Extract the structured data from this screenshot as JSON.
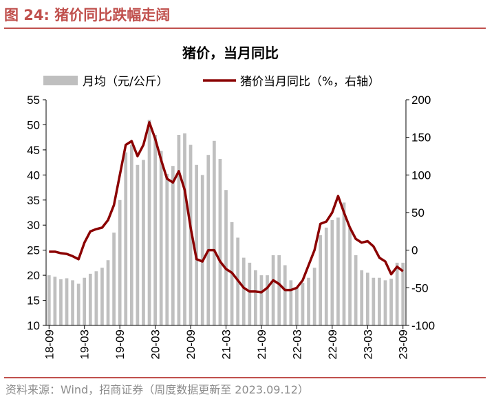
{
  "figure": {
    "title": "图 24:  猪价同比跌幅走阔",
    "source": "资料来源：Wind，招商证券（周度数据更新至 2023.09.12）"
  },
  "chart_data": {
    "type": "bar+line",
    "title": "猪价，当月同比",
    "legend_position": "top",
    "categories": [
      "18-09",
      "18-10",
      "18-11",
      "18-12",
      "19-01",
      "19-02",
      "19-03",
      "19-04",
      "19-05",
      "19-06",
      "19-07",
      "19-08",
      "19-09",
      "19-10",
      "19-11",
      "19-12",
      "20-01",
      "20-02",
      "20-03",
      "20-04",
      "20-05",
      "20-06",
      "20-07",
      "20-08",
      "20-09",
      "20-10",
      "20-11",
      "20-12",
      "21-01",
      "21-02",
      "21-03",
      "21-04",
      "21-05",
      "21-06",
      "21-07",
      "21-08",
      "21-09",
      "21-10",
      "21-11",
      "21-12",
      "22-01",
      "22-02",
      "22-03",
      "22-04",
      "22-05",
      "22-06",
      "22-07",
      "22-08",
      "22-09",
      "22-10",
      "22-11",
      "22-12",
      "23-01",
      "23-02",
      "23-03",
      "23-04",
      "23-05",
      "23-06",
      "23-07",
      "23-08",
      "23-09"
    ],
    "x_tick_labels": [
      "18-09",
      "19-03",
      "19-09",
      "20-03",
      "20-09",
      "21-03",
      "21-09",
      "22-03",
      "22-09",
      "23-03",
      "23-09"
    ],
    "y_left": {
      "min": 10,
      "max": 55,
      "ticks": [
        10,
        15,
        20,
        25,
        30,
        35,
        40,
        45,
        50,
        55
      ]
    },
    "y_right": {
      "min": -100,
      "max": 200,
      "ticks": [
        -100,
        -50,
        0,
        50,
        100,
        150,
        200
      ]
    },
    "series": [
      {
        "name": "月均（元/公斤）",
        "type": "bar",
        "axis": "left",
        "color": "#bfbfbf",
        "values": [
          20.0,
          19.7,
          19.2,
          19.4,
          19.0,
          18.3,
          19.5,
          20.3,
          20.8,
          21.5,
          23.0,
          28.5,
          35.0,
          44.5,
          46.0,
          42.0,
          43.0,
          51.0,
          48.0,
          44.8,
          40.2,
          41.8,
          48.0,
          48.3,
          46.0,
          42.0,
          40.0,
          44.0,
          46.8,
          43.2,
          37.0,
          30.6,
          27.5,
          23.5,
          22.5,
          21.0,
          20.0,
          20.0,
          24.0,
          24.0,
          22.0,
          19.0,
          17.5,
          18.5,
          19.5,
          21.5,
          28.0,
          29.5,
          31.0,
          31.5,
          34.5,
          29.5,
          24.0,
          21.0,
          20.5,
          19.5,
          19.5,
          19.0,
          19.3,
          22.5,
          22.5
        ]
      },
      {
        "name": "猪价当月同比（%，右轴）",
        "type": "line",
        "axis": "right",
        "color": "#8b0000",
        "values": [
          -2,
          -2,
          -4,
          -5,
          -8,
          -12,
          10,
          25,
          28,
          30,
          40,
          60,
          100,
          140,
          145,
          125,
          140,
          170,
          148,
          120,
          95,
          90,
          105,
          80,
          30,
          -12,
          -15,
          0,
          0,
          -15,
          -25,
          -30,
          -40,
          -50,
          -55,
          -55,
          -56,
          -50,
          -40,
          -45,
          -53,
          -53,
          -50,
          -40,
          -20,
          0,
          35,
          38,
          50,
          72,
          50,
          30,
          15,
          10,
          12,
          5,
          -10,
          -15,
          -32,
          -22,
          -28
        ]
      }
    ]
  }
}
